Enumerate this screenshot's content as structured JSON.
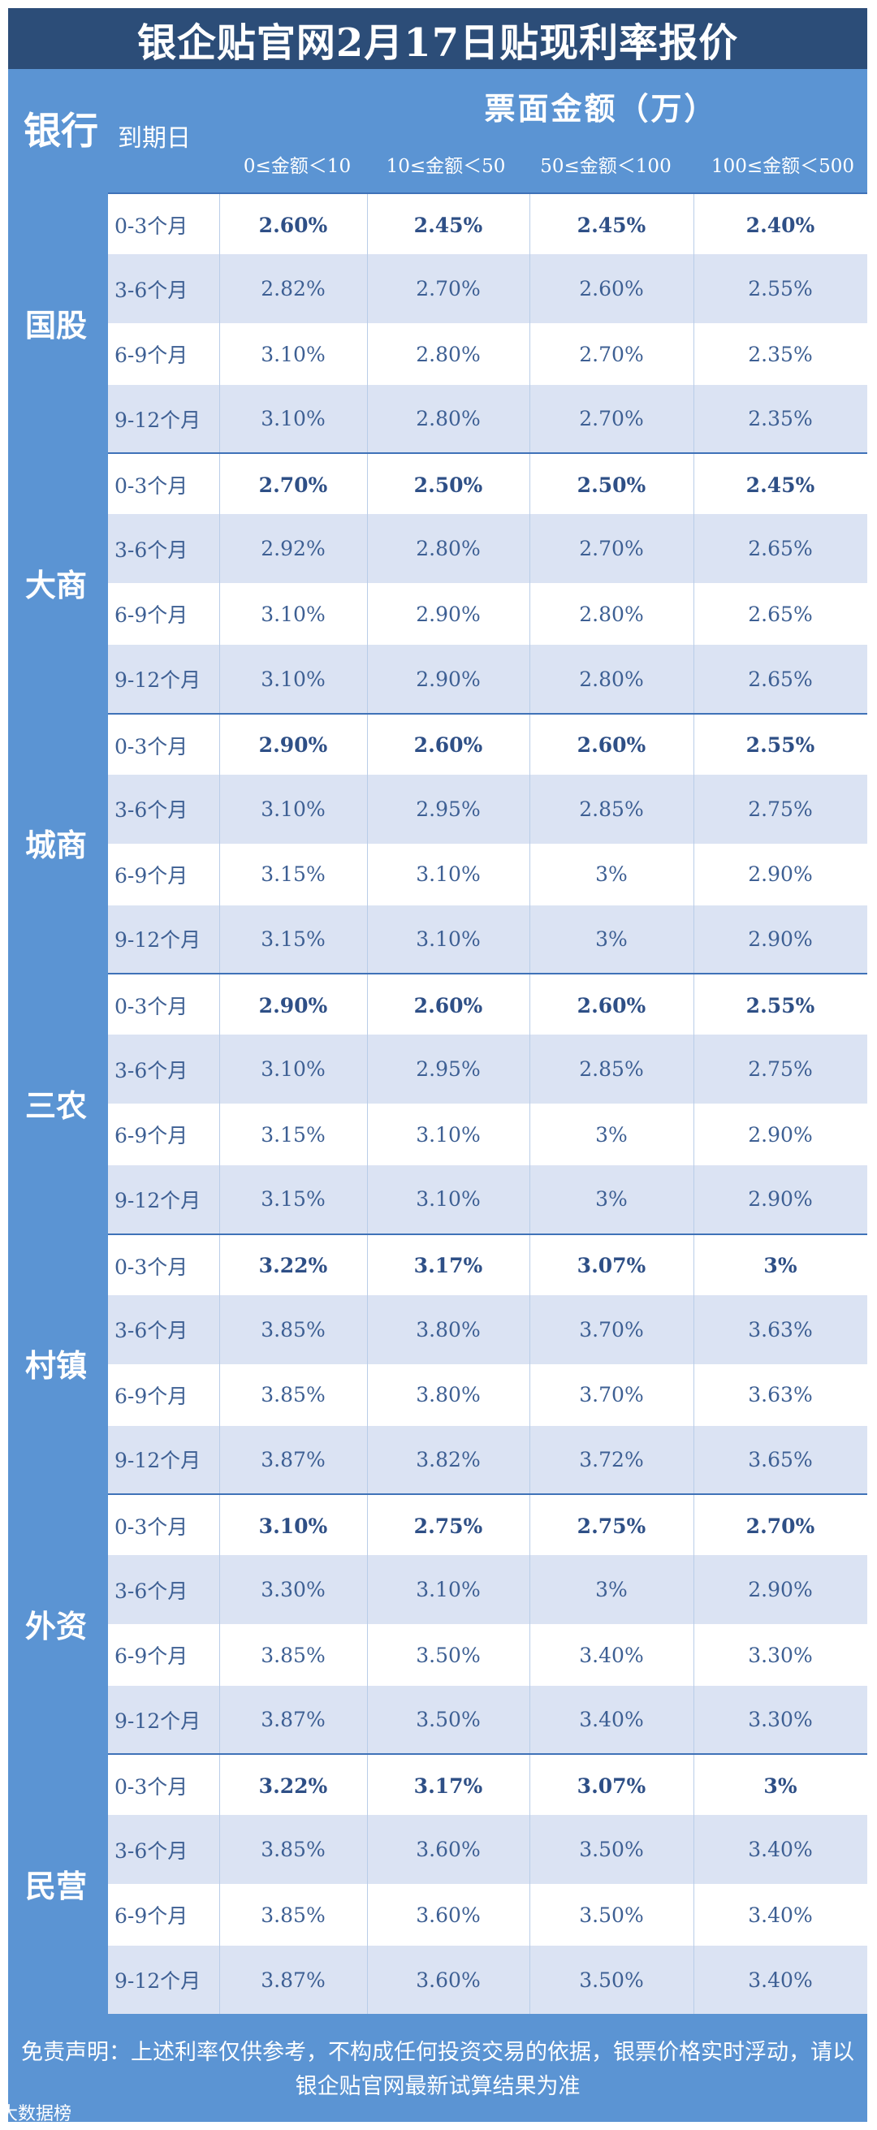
{
  "title": "银企贴官网2月17日贴现利率报价",
  "header": {
    "bank_label": "银行",
    "due_label": "到期日",
    "amount_label": "票面金额（万）",
    "columns": [
      "0≤金额＜10",
      "10≤金额＜50",
      "50≤金额＜100",
      "100≤金额＜500"
    ]
  },
  "groups": [
    {
      "name": "国股",
      "rows": [
        {
          "term": "0-3个月",
          "values": [
            "2.60%",
            "2.45%",
            "2.45%",
            "2.40%"
          ]
        },
        {
          "term": "3-6个月",
          "values": [
            "2.82%",
            "2.70%",
            "2.60%",
            "2.55%"
          ]
        },
        {
          "term": "6-9个月",
          "values": [
            "3.10%",
            "2.80%",
            "2.70%",
            "2.35%"
          ]
        },
        {
          "term": "9-12个月",
          "values": [
            "3.10%",
            "2.80%",
            "2.70%",
            "2.35%"
          ]
        }
      ]
    },
    {
      "name": "大商",
      "rows": [
        {
          "term": "0-3个月",
          "values": [
            "2.70%",
            "2.50%",
            "2.50%",
            "2.45%"
          ]
        },
        {
          "term": "3-6个月",
          "values": [
            "2.92%",
            "2.80%",
            "2.70%",
            "2.65%"
          ]
        },
        {
          "term": "6-9个月",
          "values": [
            "3.10%",
            "2.90%",
            "2.80%",
            "2.65%"
          ]
        },
        {
          "term": "9-12个月",
          "values": [
            "3.10%",
            "2.90%",
            "2.80%",
            "2.65%"
          ]
        }
      ]
    },
    {
      "name": "城商",
      "rows": [
        {
          "term": "0-3个月",
          "values": [
            "2.90%",
            "2.60%",
            "2.60%",
            "2.55%"
          ]
        },
        {
          "term": "3-6个月",
          "values": [
            "3.10%",
            "2.95%",
            "2.85%",
            "2.75%"
          ]
        },
        {
          "term": "6-9个月",
          "values": [
            "3.15%",
            "3.10%",
            "3%",
            "2.90%"
          ]
        },
        {
          "term": "9-12个月",
          "values": [
            "3.15%",
            "3.10%",
            "3%",
            "2.90%"
          ]
        }
      ]
    },
    {
      "name": "三农",
      "rows": [
        {
          "term": "0-3个月",
          "values": [
            "2.90%",
            "2.60%",
            "2.60%",
            "2.55%"
          ]
        },
        {
          "term": "3-6个月",
          "values": [
            "3.10%",
            "2.95%",
            "2.85%",
            "2.75%"
          ]
        },
        {
          "term": "6-9个月",
          "values": [
            "3.15%",
            "3.10%",
            "3%",
            "2.90%"
          ]
        },
        {
          "term": "9-12个月",
          "values": [
            "3.15%",
            "3.10%",
            "3%",
            "2.90%"
          ]
        }
      ]
    },
    {
      "name": "村镇",
      "rows": [
        {
          "term": "0-3个月",
          "values": [
            "3.22%",
            "3.17%",
            "3.07%",
            "3%"
          ]
        },
        {
          "term": "3-6个月",
          "values": [
            "3.85%",
            "3.80%",
            "3.70%",
            "3.63%"
          ]
        },
        {
          "term": "6-9个月",
          "values": [
            "3.85%",
            "3.80%",
            "3.70%",
            "3.63%"
          ]
        },
        {
          "term": "9-12个月",
          "values": [
            "3.87%",
            "3.82%",
            "3.72%",
            "3.65%"
          ]
        }
      ]
    },
    {
      "name": "外资",
      "rows": [
        {
          "term": "0-3个月",
          "values": [
            "3.10%",
            "2.75%",
            "2.75%",
            "2.70%"
          ]
        },
        {
          "term": "3-6个月",
          "values": [
            "3.30%",
            "3.10%",
            "3%",
            "2.90%"
          ]
        },
        {
          "term": "6-9个月",
          "values": [
            "3.85%",
            "3.50%",
            "3.40%",
            "3.30%"
          ]
        },
        {
          "term": "9-12个月",
          "values": [
            "3.87%",
            "3.50%",
            "3.40%",
            "3.30%"
          ]
        }
      ]
    },
    {
      "name": "民营",
      "rows": [
        {
          "term": "0-3个月",
          "values": [
            "3.22%",
            "3.17%",
            "3.07%",
            "3%"
          ]
        },
        {
          "term": "3-6个月",
          "values": [
            "3.85%",
            "3.60%",
            "3.50%",
            "3.40%"
          ]
        },
        {
          "term": "6-9个月",
          "values": [
            "3.85%",
            "3.60%",
            "3.50%",
            "3.40%"
          ]
        },
        {
          "term": "9-12个月",
          "values": [
            "3.87%",
            "3.60%",
            "3.50%",
            "3.40%"
          ]
        }
      ]
    }
  ],
  "footer": {
    "line1": "免责声明：上述利率仅供参考，不构成任何投资交易的依据，银票价格实时浮动，请以",
    "line2": "银企贴官网最新试算结果为准"
  },
  "source_logo": "大数据榜"
}
